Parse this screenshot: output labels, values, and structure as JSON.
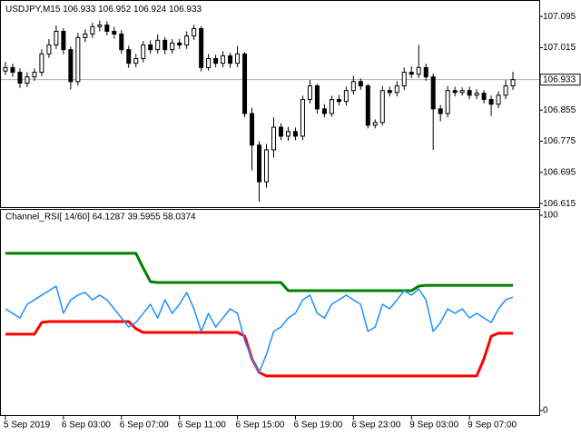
{
  "chart_data": [
    {
      "type": "candlestick",
      "title": "USDJPY,M15",
      "subtitle": "106.933 106.952 106.924 106.933",
      "xlim": [
        -0.625,
        73.625
      ],
      "ylim": [
        106.606,
        107.135
      ],
      "yticks": [
        106.615,
        106.695,
        106.775,
        106.855,
        107.015,
        107.095
      ],
      "last_price": 106.933,
      "color": "#000000",
      "open": [
        106.955,
        106.964,
        106.952,
        106.924,
        106.94,
        106.952,
        106.999,
        107.022,
        107.057,
        107.01,
        106.928,
        107.041,
        107.05,
        107.069,
        107.073,
        107.057,
        107.05,
        107.01,
        106.975,
        106.987,
        107.022,
        107.01,
        107.034,
        107.01,
        107.027,
        107.022,
        107.045,
        107.064,
        106.964,
        106.987,
        106.975,
        106.994,
        106.975,
        106.999,
        106.846,
        106.765,
        106.671,
        106.753,
        106.811,
        106.788,
        106.8,
        106.788,
        106.882,
        106.917,
        106.858,
        106.846,
        106.882,
        106.877,
        106.905,
        106.928,
        106.917,
        106.816,
        106.823,
        106.905,
        106.9,
        106.917,
        106.952,
        106.947,
        106.964,
        106.94,
        106.858,
        106.846,
        106.905,
        106.9,
        106.905,
        106.893,
        106.898,
        106.882,
        106.87,
        106.893,
        106.917
      ],
      "high": [
        106.979,
        106.974,
        106.962,
        106.952,
        106.962,
        107.011,
        107.037,
        107.072,
        107.065,
        107.018,
        107.053,
        107.062,
        107.079,
        107.085,
        107.083,
        107.069,
        107.06,
        107.02,
        106.999,
        107.032,
        107.034,
        107.049,
        107.042,
        107.037,
        107.037,
        107.057,
        107.074,
        107.07,
        106.999,
        106.997,
        107.006,
        107.002,
        107.019,
        107.004,
        106.861,
        106.775,
        106.768,
        106.836,
        106.821,
        106.812,
        106.81,
        106.892,
        106.932,
        106.922,
        106.87,
        106.892,
        106.894,
        106.915,
        106.943,
        106.936,
        106.922,
        106.831,
        106.917,
        106.915,
        106.929,
        106.964,
        106.967,
        107.022,
        106.974,
        106.948,
        106.868,
        106.917,
        106.915,
        106.913,
        106.915,
        106.908,
        106.906,
        106.892,
        106.903,
        106.932,
        106.953
      ],
      "low": [
        106.945,
        106.94,
        106.912,
        106.914,
        106.93,
        106.942,
        106.989,
        107.012,
        106.998,
        106.908,
        106.918,
        107.029,
        107.04,
        107.057,
        107.047,
        107.038,
        107.0,
        106.963,
        106.965,
        106.977,
        107.0,
        107.0,
        106.998,
        107.0,
        107.012,
        107.012,
        107.035,
        106.954,
        106.956,
        106.965,
        106.965,
        106.963,
        106.965,
        106.836,
        106.7,
        106.62,
        106.656,
        106.733,
        106.778,
        106.776,
        106.778,
        106.778,
        106.872,
        106.846,
        106.836,
        106.838,
        106.867,
        106.867,
        106.895,
        106.907,
        106.808,
        106.808,
        106.815,
        106.89,
        106.89,
        106.907,
        106.937,
        106.937,
        106.93,
        106.753,
        106.826,
        106.836,
        106.89,
        106.892,
        106.883,
        106.883,
        106.872,
        106.84,
        106.86,
        106.883,
        106.907
      ],
      "close": [
        106.964,
        106.952,
        106.924,
        106.94,
        106.952,
        106.999,
        107.022,
        107.057,
        107.01,
        106.928,
        107.041,
        107.05,
        107.069,
        107.073,
        107.057,
        107.05,
        107.01,
        106.975,
        106.987,
        107.022,
        107.01,
        107.034,
        107.01,
        107.027,
        107.022,
        107.045,
        107.064,
        106.964,
        106.987,
        106.975,
        106.994,
        106.975,
        106.999,
        106.846,
        106.765,
        106.671,
        106.753,
        106.811,
        106.788,
        106.8,
        106.788,
        106.882,
        106.917,
        106.858,
        106.846,
        106.882,
        106.877,
        106.905,
        106.928,
        106.917,
        106.816,
        106.823,
        106.905,
        106.9,
        106.917,
        106.952,
        106.947,
        106.964,
        106.94,
        106.858,
        106.846,
        106.905,
        106.9,
        106.905,
        106.893,
        106.898,
        106.882,
        106.87,
        106.893,
        106.917,
        106.933
      ]
    },
    {
      "type": "line",
      "title": "Channel_RSI[ 14/60] 64.1287 39.5955 58.0374",
      "xlim": [
        -0.625,
        73.625
      ],
      "ylim": [
        -2.8,
        102.8
      ],
      "yticks": [
        0,
        100
      ],
      "xticks": [
        {
          "value": 0,
          "label": "5 Sep 2019"
        },
        {
          "value": 8,
          "label": "6 Sep 03:00"
        },
        {
          "value": 16,
          "label": "6 Sep 07:00"
        },
        {
          "value": 24,
          "label": "6 Sep 11:00"
        },
        {
          "value": 32,
          "label": "6 Sep 15:00"
        },
        {
          "value": 40,
          "label": "6 Sep 19:00"
        },
        {
          "value": 48,
          "label": "6 Sep 23:00"
        },
        {
          "value": 56,
          "label": "9 Sep 03:00"
        },
        {
          "value": 64,
          "label": "9 Sep 07:00"
        }
      ],
      "series": [
        {
          "color": "#008000",
          "width": 3,
          "values": [
            80.5,
            80.5,
            80.5,
            80.5,
            80.5,
            80.5,
            80.5,
            80.5,
            80.5,
            80.5,
            80.5,
            80.5,
            80.5,
            80.5,
            80.5,
            80.5,
            80.5,
            80.5,
            80.5,
            73,
            66,
            65.6,
            65.6,
            65.6,
            65.6,
            65.6,
            65.6,
            65.6,
            65.6,
            65.6,
            65.6,
            65.6,
            65.6,
            65.6,
            65.6,
            65.6,
            65.6,
            65.6,
            65.6,
            61.4,
            61.4,
            61.4,
            61.4,
            61.4,
            61.4,
            61.4,
            61.4,
            61.4,
            61.4,
            61.4,
            61.4,
            61.4,
            61.4,
            61.4,
            61.4,
            61.4,
            61.4,
            63.7,
            64.1287,
            64.1287,
            64.1287,
            64.1287,
            64.1287,
            64.1287,
            64.1287,
            64.1287,
            64.1287,
            64.1287,
            64.1287,
            64.1287,
            64.1287
          ]
        },
        {
          "color": "#ff0000",
          "width": 3,
          "values": [
            39.1,
            39.1,
            39.1,
            39.1,
            39.1,
            45.1,
            45.6,
            45.6,
            45.6,
            45.6,
            45.6,
            45.6,
            45.6,
            45.6,
            45.6,
            45.6,
            45.6,
            45.6,
            41.9,
            40,
            40,
            40,
            40,
            40,
            40,
            40,
            40,
            40,
            40,
            40,
            40,
            40,
            40,
            38.1,
            26.5,
            19.5,
            17.7,
            17.7,
            17.7,
            17.7,
            17.7,
            17.7,
            17.7,
            17.7,
            17.7,
            17.7,
            17.7,
            17.7,
            17.7,
            17.7,
            17.7,
            17.7,
            17.7,
            17.7,
            17.7,
            17.7,
            17.7,
            17.7,
            17.7,
            17.7,
            17.7,
            17.7,
            17.7,
            17.7,
            17.7,
            17.7,
            26.5,
            38.1,
            39.5955,
            39.5955,
            39.5955
          ]
        },
        {
          "color": "#1e90ff",
          "width": 1.5,
          "values": [
            52.1,
            49.8,
            47.4,
            54.4,
            56.7,
            59.1,
            61.4,
            63.7,
            49.8,
            56.7,
            59.1,
            60.5,
            56.7,
            59.1,
            56.7,
            52.1,
            47.4,
            42.8,
            45.1,
            49.8,
            54.4,
            47.4,
            56.7,
            49.8,
            54.4,
            60.5,
            52.1,
            40.5,
            49.8,
            42.8,
            47.4,
            52.1,
            49.8,
            35.8,
            26.5,
            19.5,
            28.8,
            40.5,
            42.8,
            47.4,
            49.8,
            56.7,
            59.1,
            49.8,
            47.4,
            54.4,
            56.7,
            59.1,
            56.7,
            54.4,
            40.5,
            42.8,
            54.4,
            52.1,
            56.7,
            61.4,
            59.1,
            62.3,
            56.7,
            40.5,
            45.1,
            52.1,
            49.8,
            52.1,
            47.4,
            49.8,
            47.4,
            45.1,
            52.1,
            56.7,
            58.0374
          ]
        }
      ]
    }
  ]
}
